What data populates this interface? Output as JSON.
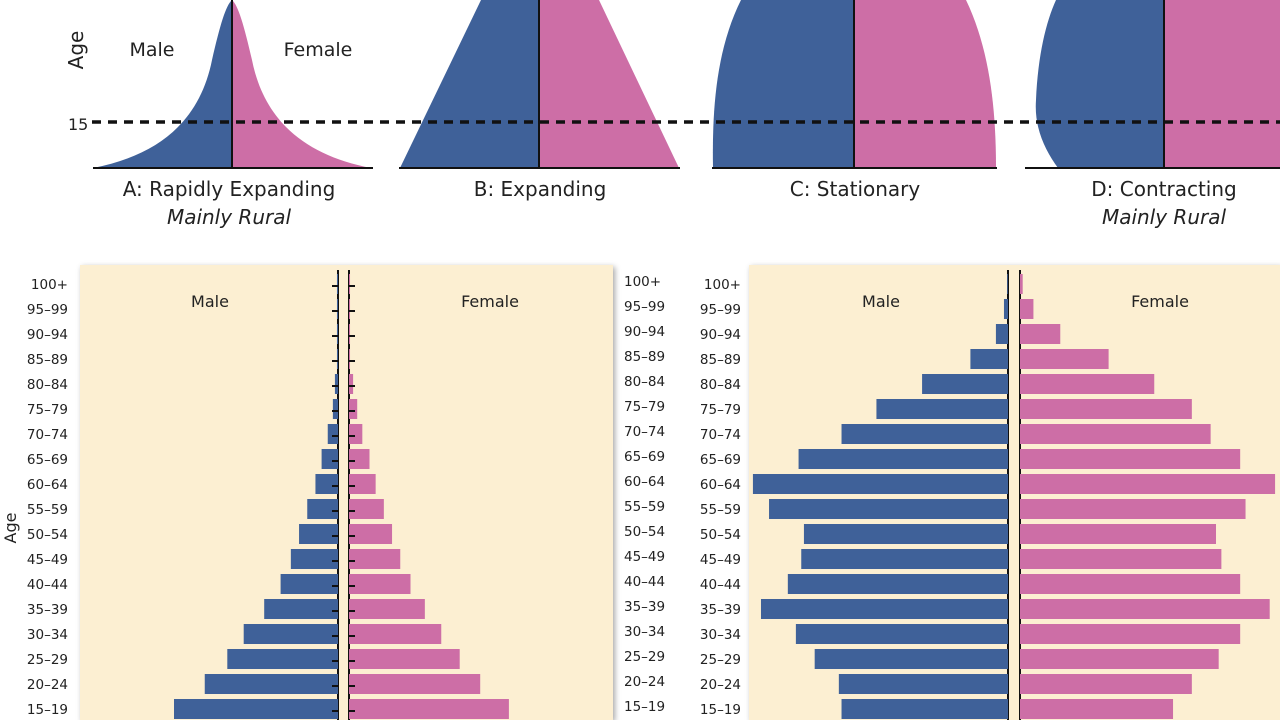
{
  "colors": {
    "male": "#3f6199",
    "female": "#cd6ea6",
    "panel": "#fcefd2",
    "axis": "#111111",
    "text": "#222222"
  },
  "top": {
    "age_label": "Age",
    "male_label": "Male",
    "female_label": "Female",
    "age_marker": "15",
    "shapes": [
      {
        "name": "shape-a",
        "title": "A: Rapidly Expanding",
        "subtitle": "Mainly Rural"
      },
      {
        "name": "shape-b",
        "title": "B: Expanding",
        "subtitle": ""
      },
      {
        "name": "shape-c",
        "title": "C: Stationary",
        "subtitle": ""
      },
      {
        "name": "shape-d",
        "title": "D: Contracting",
        "subtitle": "Mainly Rural"
      }
    ]
  },
  "chart_data": [
    {
      "type": "bar",
      "orientation": "horizontal-population-pyramid",
      "title": "",
      "ylabel": "Age",
      "male_label": "Male",
      "female_label": "Female",
      "categories": [
        "100+",
        "95–99",
        "90–94",
        "85–89",
        "80–84",
        "75–79",
        "70–74",
        "65–69",
        "60–64",
        "55–59",
        "50–54",
        "45–49",
        "40–44",
        "35–39",
        "30–34",
        "25–29",
        "20–24",
        "15–19"
      ],
      "series": [
        {
          "name": "Male",
          "values": [
            0.5,
            0.5,
            0.5,
            0.5,
            1.5,
            2.5,
            5,
            8,
            11,
            15,
            19,
            23,
            28,
            36,
            46,
            54,
            65,
            80
          ]
        },
        {
          "name": "Female",
          "values": [
            0.5,
            0.5,
            0.5,
            0.5,
            2,
            4,
            6.5,
            10,
            13,
            17,
            21,
            25,
            30,
            37,
            45,
            54,
            64,
            78
          ]
        }
      ]
    },
    {
      "type": "bar",
      "orientation": "horizontal-population-pyramid",
      "title": "",
      "ylabel": "",
      "male_label": "Male",
      "female_label": "Female",
      "categories": [
        "100+",
        "95–99",
        "90–94",
        "85–89",
        "80–84",
        "75–79",
        "70–74",
        "65–69",
        "60–64",
        "55–59",
        "50–54",
        "45–49",
        "40–44",
        "35–39",
        "30–34",
        "25–29",
        "20–24",
        "15–19"
      ],
      "series": [
        {
          "name": "Male",
          "values": [
            0.3,
            1.5,
            4.5,
            14,
            32,
            49,
            62,
            78,
            95,
            89,
            76,
            77,
            82,
            92,
            79,
            72,
            63,
            62
          ]
        },
        {
          "name": "Female",
          "values": [
            1,
            5,
            15,
            33,
            50,
            64,
            71,
            82,
            95,
            84,
            73,
            75,
            82,
            93,
            82,
            74,
            64,
            57
          ]
        }
      ]
    }
  ]
}
